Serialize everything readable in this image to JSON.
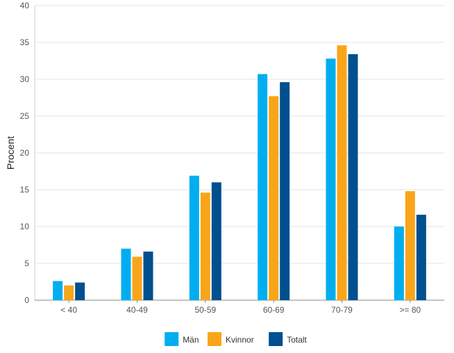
{
  "chart_data": {
    "type": "bar",
    "title": "",
    "xlabel": "",
    "ylabel": "Procent",
    "ylim": [
      0,
      40
    ],
    "yticks": [
      0,
      5,
      10,
      15,
      20,
      25,
      30,
      35,
      40
    ],
    "grid": true,
    "legend_position": "bottom",
    "categories": [
      "< 40",
      "40-49",
      "50-59",
      "60-69",
      "70-79",
      ">= 80"
    ],
    "series": [
      {
        "name": "Män",
        "color": "#00AEEF",
        "values": [
          2.6,
          7.0,
          16.9,
          30.7,
          32.8,
          10.0
        ]
      },
      {
        "name": "Kvinnor",
        "color": "#F9A51A",
        "values": [
          2.0,
          5.9,
          14.6,
          27.7,
          34.6,
          14.8
        ]
      },
      {
        "name": "Totalt",
        "color": "#004F8F",
        "values": [
          2.4,
          6.6,
          16.0,
          29.6,
          33.4,
          11.6
        ]
      }
    ]
  }
}
